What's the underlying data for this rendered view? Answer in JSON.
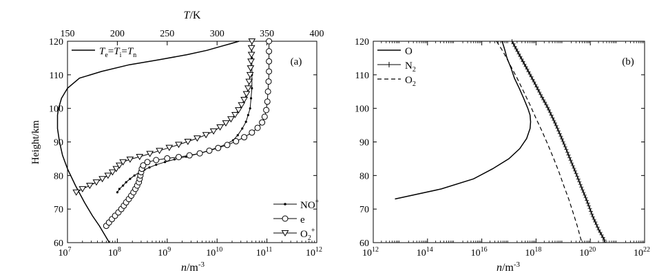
{
  "chart_data": [
    {
      "type": "line",
      "panel_label": "(a)",
      "xlabel": "n",
      "xlabel_unit": "/m",
      "xlabel_exp": "-3",
      "xscale": "log",
      "xlim": [
        10000000.0,
        1000000000000.0
      ],
      "x_ticks": [
        {
          "value": 10000000.0,
          "base": "10",
          "exp": "7"
        },
        {
          "value": 100000000.0,
          "base": "10",
          "exp": "8"
        },
        {
          "value": 1000000000.0,
          "base": "10",
          "exp": "9"
        },
        {
          "value": 10000000000.0,
          "base": "10",
          "exp": "10"
        },
        {
          "value": 100000000000.0,
          "base": "10",
          "exp": "11"
        },
        {
          "value": 1000000000000.0,
          "base": "10",
          "exp": "12"
        }
      ],
      "ylabel": "Height/km",
      "ylim": [
        60,
        120
      ],
      "y_ticks": [
        "60",
        "70",
        "80",
        "90",
        "100",
        "110",
        "120"
      ],
      "top_axis": {
        "label_T": "T",
        "label_unit": "/K",
        "xlim": [
          150,
          400
        ],
        "ticks": [
          "150",
          "200",
          "250",
          "300",
          "350",
          "400"
        ]
      },
      "legend_top": {
        "position": "top-left",
        "T": "T",
        "e": "e",
        "i": "i",
        "n": "n",
        "eq": "="
      },
      "legend_bottom": {
        "position": "bottom-right",
        "entries": [
          {
            "name": "NO",
            "sup": "+",
            "marker": "dot"
          },
          {
            "name": "e",
            "sup": "",
            "marker": "circle"
          },
          {
            "name": "O",
            "sub": "2",
            "sup": "+",
            "marker": "triangle-down"
          }
        ]
      },
      "series": [
        {
          "name": "T",
          "axis": "top",
          "marker": "none",
          "points": [
            [
              192,
              60
            ],
            [
              188,
              62
            ],
            [
              182,
              65
            ],
            [
              175,
              68
            ],
            [
              167,
              72
            ],
            [
              158,
              77
            ],
            [
              150,
              82
            ],
            [
              145,
              86
            ],
            [
              142,
              90
            ],
            [
              140,
              94
            ],
            [
              140,
              98
            ],
            [
              141,
              100
            ],
            [
              144,
              103
            ],
            [
              150,
              106
            ],
            [
              162,
              109
            ],
            [
              184,
              111
            ],
            [
              212,
              113
            ],
            [
              242,
              114.5
            ],
            [
              270,
              116
            ],
            [
              290,
              117.3
            ],
            [
              303,
              118.4
            ],
            [
              314,
              119.3
            ],
            [
              322,
              120
            ]
          ]
        },
        {
          "name": "NO+",
          "marker": "dot",
          "points": [
            [
              100000000.0,
              75
            ],
            [
              110000000.0,
              76
            ],
            [
              130000000.0,
              77
            ],
            [
              150000000.0,
              78
            ],
            [
              180000000.0,
              79
            ],
            [
              220000000.0,
              80
            ],
            [
              280000000.0,
              81
            ],
            [
              350000000.0,
              81.7
            ],
            [
              440000000.0,
              82.4
            ],
            [
              600000000.0,
              83.2
            ],
            [
              900000000.0,
              84
            ],
            [
              1400000000.0,
              84.8
            ],
            [
              2400000000.0,
              85.6
            ],
            [
              4200000000.0,
              86.5
            ],
            [
              7000000000.0,
              87.5
            ],
            [
              11000000000.0,
              88.5
            ],
            [
              16000000000.0,
              89.5
            ],
            [
              21000000000.0,
              90.5
            ],
            [
              26000000000.0,
              92
            ],
            [
              32000000000.0,
              94
            ],
            [
              38000000000.0,
              96
            ],
            [
              42000000000.0,
              98
            ],
            [
              46000000000.0,
              100
            ],
            [
              48000000000.0,
              103
            ],
            [
              50000000000.0,
              106
            ],
            [
              50000000000.0,
              110
            ],
            [
              50000000000.0,
              115
            ],
            [
              50000000000.0,
              120
            ]
          ]
        },
        {
          "name": "e",
          "marker": "circle",
          "points": [
            [
              60000000.0,
              65
            ],
            [
              68000000.0,
              66
            ],
            [
              78000000.0,
              67
            ],
            [
              90000000.0,
              68
            ],
            [
              105000000.0,
              69
            ],
            [
              120000000.0,
              70
            ],
            [
              135000000.0,
              71
            ],
            [
              150000000.0,
              72
            ],
            [
              170000000.0,
              73
            ],
            [
              190000000.0,
              74
            ],
            [
              210000000.0,
              75
            ],
            [
              230000000.0,
              76
            ],
            [
              250000000.0,
              77
            ],
            [
              270000000.0,
              78
            ],
            [
              280000000.0,
              79
            ],
            [
              290000000.0,
              80
            ],
            [
              300000000.0,
              81
            ],
            [
              310000000.0,
              82
            ],
            [
              330000000.0,
              83
            ],
            [
              400000000.0,
              84
            ],
            [
              600000000.0,
              84.6
            ],
            [
              1000000000.0,
              85.1
            ],
            [
              1700000000.0,
              85.5
            ],
            [
              2800000000.0,
              86.0
            ],
            [
              4500000000.0,
              86.6
            ],
            [
              7000000000.0,
              87.4
            ],
            [
              10500000000.0,
              88.2
            ],
            [
              16000000000.0,
              89.1
            ],
            [
              24000000000.0,
              90.2
            ],
            [
              35000000000.0,
              91.4
            ],
            [
              50000000000.0,
              92.8
            ],
            [
              65000000000.0,
              94.2
            ],
            [
              80000000000.0,
              95.8
            ],
            [
              90000000000.0,
              97.5
            ],
            [
              97000000000.0,
              99.5
            ],
            [
              102000000000.0,
              102
            ],
            [
              105000000000.0,
              105
            ],
            [
              108000000000.0,
              108
            ],
            [
              110000000000.0,
              111
            ],
            [
              110000000000.0,
              114
            ],
            [
              110000000000.0,
              117
            ],
            [
              110000000000.0,
              120
            ]
          ]
        },
        {
          "name": "O2+",
          "marker": "triangle-down",
          "points": [
            [
              15000000.0,
              75
            ],
            [
              20000000.0,
              76
            ],
            [
              28000000.0,
              77
            ],
            [
              38000000.0,
              78
            ],
            [
              50000000.0,
              79
            ],
            [
              65000000.0,
              80
            ],
            [
              80000000.0,
              81
            ],
            [
              95000000.0,
              82
            ],
            [
              110000000.0,
              83
            ],
            [
              130000000.0,
              84
            ],
            [
              180000000.0,
              84.8
            ],
            [
              280000000.0,
              85.6
            ],
            [
              450000000.0,
              86.5
            ],
            [
              700000000.0,
              87.4
            ],
            [
              1100000000.0,
              88.3
            ],
            [
              1700000000.0,
              89.2
            ],
            [
              2600000000.0,
              90.1
            ],
            [
              4000000000.0,
              91.1
            ],
            [
              6000000000.0,
              92.1
            ],
            [
              8500000000.0,
              93.2
            ],
            [
              11500000000.0,
              94.4
            ],
            [
              15000000000.0,
              95.6
            ],
            [
              19000000000.0,
              96.8
            ],
            [
              23000000000.0,
              98.1
            ],
            [
              27000000000.0,
              99.5
            ],
            [
              31000000000.0,
              101
            ],
            [
              35000000000.0,
              102.6
            ],
            [
              39000000000.0,
              104.3
            ],
            [
              42000000000.0,
              106
            ],
            [
              44000000000.0,
              108
            ],
            [
              46000000000.0,
              110
            ],
            [
              47000000000.0,
              112
            ],
            [
              48000000000.0,
              114
            ],
            [
              49000000000.0,
              116
            ],
            [
              49000000000.0,
              118
            ],
            [
              50000000000.0,
              120
            ]
          ]
        }
      ]
    },
    {
      "type": "line",
      "panel_label": "(b)",
      "xlabel": "n",
      "xlabel_unit": "/m",
      "xlabel_exp": "-3",
      "xscale": "log",
      "xlim": [
        1000000000000.0,
        1e+22
      ],
      "x_ticks": [
        {
          "value": 1000000000000.0,
          "base": "10",
          "exp": "12"
        },
        {
          "value": 100000000000000.0,
          "base": "10",
          "exp": "14"
        },
        {
          "value": 1e+16,
          "base": "10",
          "exp": "16"
        },
        {
          "value": 1e+18,
          "base": "10",
          "exp": "18"
        },
        {
          "value": 1e+20,
          "base": "10",
          "exp": "20"
        },
        {
          "value": 1e+22,
          "base": "10",
          "exp": "22"
        }
      ],
      "ylim": [
        60,
        120
      ],
      "y_ticks": [
        "60",
        "70",
        "80",
        "90",
        "100",
        "110",
        "120"
      ],
      "legend": {
        "position": "top-left",
        "entries": [
          {
            "name": "O",
            "sub": "",
            "style": "solid"
          },
          {
            "name": "N",
            "sub": "2",
            "style": "plus"
          },
          {
            "name": "O",
            "sub": "2",
            "style": "dashed"
          }
        ]
      },
      "series": [
        {
          "name": "O",
          "style": "solid",
          "points": [
            [
              6300000000000.0,
              73
            ],
            [
              320000000000000.0,
              76
            ],
            [
              5000000000000000.0,
              79
            ],
            [
              2.5e+16,
              82
            ],
            [
              1e+17,
              85
            ],
            [
              2.5e+17,
              88
            ],
            [
              4.5e+17,
              91
            ],
            [
              6e+17,
              94
            ],
            [
              6.3e+17,
              96
            ],
            [
              6e+17,
              98
            ],
            [
              5e+17,
              100
            ],
            [
              3.5e+17,
              103
            ],
            [
              2.4e+17,
              106
            ],
            [
              1.6e+17,
              109
            ],
            [
              1.2e+17,
              112
            ],
            [
              8.5e+16,
              115
            ],
            [
              7e+16,
              117.5
            ],
            [
              5.6e+16,
              120
            ]
          ]
        },
        {
          "name": "N2",
          "style": "plus",
          "points": [
            [
              1.3e+17,
              120
            ],
            [
              2.4e+17,
              116
            ],
            [
              4.5e+17,
              112
            ],
            [
              8.3e+17,
              108
            ],
            [
              1.5e+18,
              104
            ],
            [
              2.8e+18,
              100
            ],
            [
              4.8e+18,
              96
            ],
            [
              7.9e+18,
              92
            ],
            [
              1.26e+19,
              88
            ],
            [
              2e+19,
              84
            ],
            [
              3.2e+19,
              80
            ],
            [
              5e+19,
              76
            ],
            [
              7.9e+19,
              72
            ],
            [
              1.2e+20,
              68
            ],
            [
              2e+20,
              64
            ],
            [
              3.2e+20,
              61
            ],
            [
              3.6e+20,
              60
            ]
          ]
        },
        {
          "name": "O2",
          "style": "dashed",
          "points": [
            [
              3.5e+16,
              120
            ],
            [
              6e+16,
              117
            ],
            [
              1.1e+17,
              113
            ],
            [
              2e+17,
              109
            ],
            [
              3.5e+17,
              105
            ],
            [
              6e+17,
              101
            ],
            [
              1e+18,
              97
            ],
            [
              1.7e+18,
              93
            ],
            [
              2.8e+18,
              89
            ],
            [
              4.5e+18,
              85
            ],
            [
              7e+18,
              81
            ],
            [
              1.05e+19,
              77
            ],
            [
              1.6e+19,
              73
            ],
            [
              2.3e+19,
              69
            ],
            [
              3.3e+19,
              65
            ],
            [
              4.5e+19,
              61
            ],
            [
              5e+19,
              60
            ]
          ]
        }
      ]
    }
  ]
}
